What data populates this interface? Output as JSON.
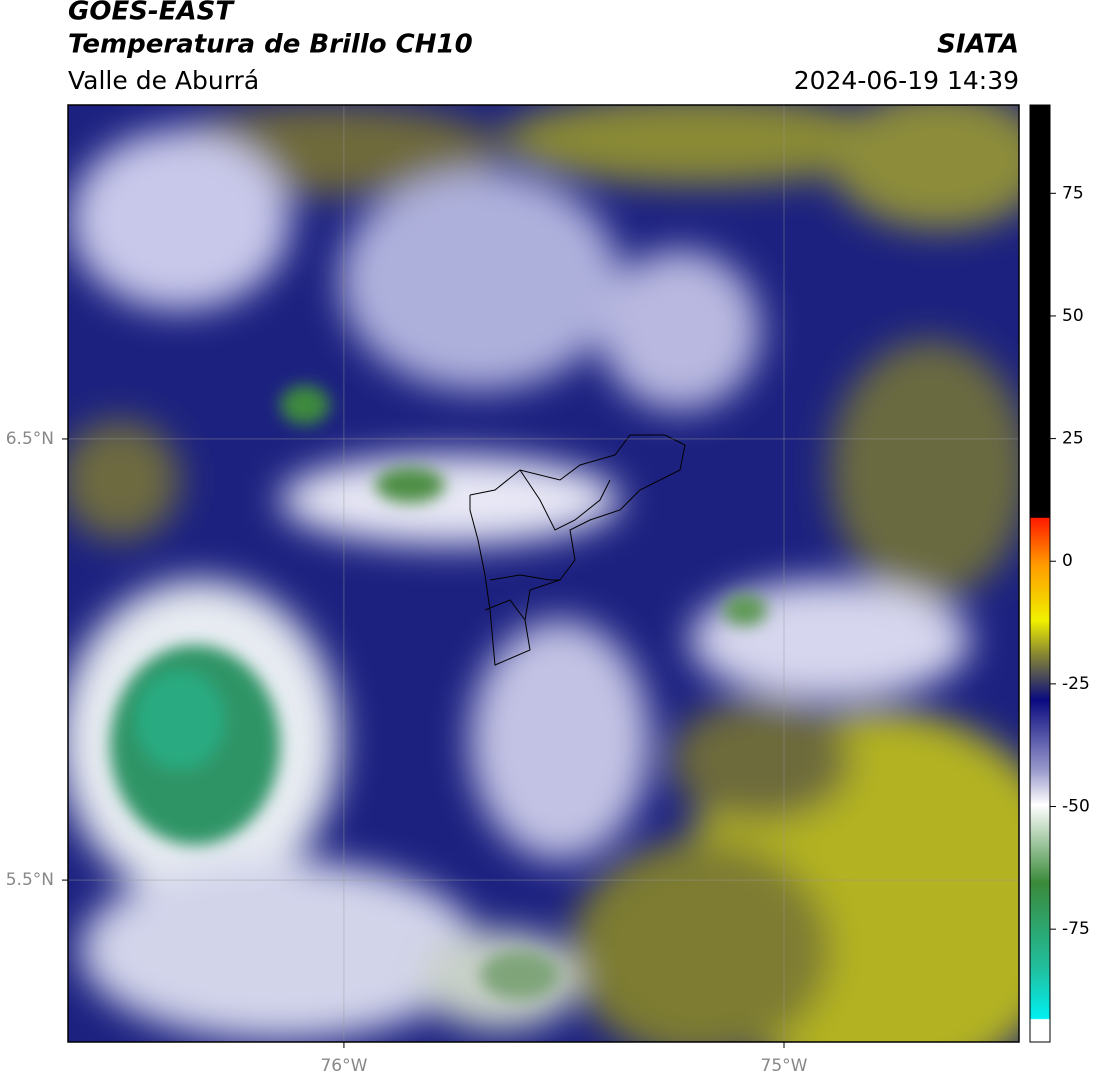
{
  "chart_data": {
    "type": "map",
    "title": "GOES-EAST",
    "subtitle": "Temperatura de Brillo CH10",
    "region": "Valle de Aburrá",
    "source": "SIATA",
    "datetime": "2024-06-19 14:39",
    "xlim": [
      -76.627,
      -74.466
    ],
    "ylim": [
      5.133,
      7.257
    ],
    "xticks": [
      {
        "value": -76,
        "label": "76°W"
      },
      {
        "value": -75,
        "label": "75°W"
      }
    ],
    "yticks": [
      {
        "value": 5.5,
        "label": "5.5°N"
      },
      {
        "value": 6.5,
        "label": "6.5°N"
      }
    ],
    "grid": true,
    "colorbar": {
      "lim": [
        -98,
        93
      ],
      "ticks": [
        -75,
        -50,
        -25,
        0,
        25,
        50,
        75
      ]
    }
  }
}
